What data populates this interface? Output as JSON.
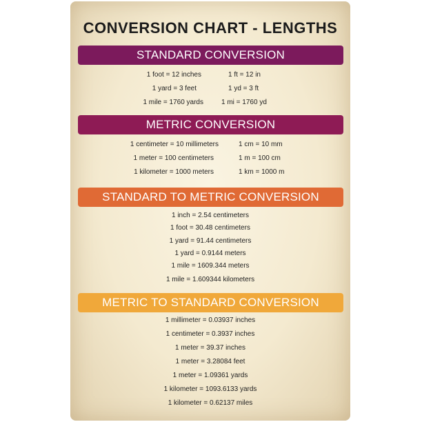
{
  "title": "CONVERSION CHART - LENGTHS",
  "sections": [
    {
      "heading": "STANDARD CONVERSION",
      "left": [
        "1 foot = 12 inches",
        "1 yard = 3 feet",
        "1 mile = 1760 yards"
      ],
      "right": [
        "1 ft = 12 in",
        "1 yd = 3 ft",
        "1 mi = 1760 yd"
      ]
    },
    {
      "heading": "METRIC CONVERSION",
      "left": [
        "1 centimeter = 10 millimeters",
        "1 meter = 100 centimeters",
        "1 kilometer = 1000 meters"
      ],
      "right": [
        "1 cm = 10 mm",
        "1 m = 100 cm",
        "1 km = 1000 m"
      ]
    },
    {
      "heading": "STANDARD TO METRIC CONVERSION",
      "lines": [
        "1 inch = 2.54 centimeters",
        "1 foot = 30.48 centimeters",
        "1 yard = 91.44 centimeters",
        "1 yard = 0.9144 meters",
        "1 mile = 1609.344 meters",
        "1 mile = 1.609344 kilometers"
      ]
    },
    {
      "heading": "METRIC TO STANDARD CONVERSION",
      "lines": [
        "1 millimeter = 0.03937 inches",
        "1 centimeter = 0.3937 inches",
        "1 meter = 39.37 inches",
        "1 meter = 3.28084 feet",
        "1 meter = 1.09361 yards",
        "1 kilometer = 1093.6133 yards",
        "1 kilometer = 0.62137 miles"
      ]
    }
  ],
  "colors": {
    "standard_band": "#7c1a5c",
    "metric_band": "#8e1b55",
    "standard_to_metric_band": "#e06a35",
    "metric_to_standard_band": "#f0a83a",
    "background": "#f4ead0"
  }
}
